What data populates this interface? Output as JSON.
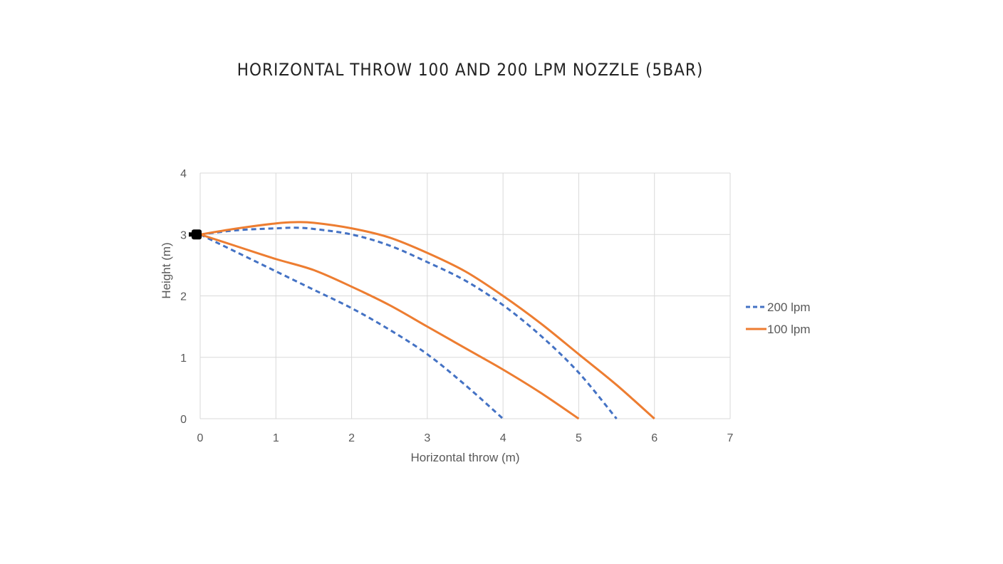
{
  "chart_data": {
    "type": "line",
    "title": "HORIZONTAL THROW 100 AND 200 LPM NOZZLE (5BAR)",
    "xlabel": "Horizontal throw (m)",
    "ylabel": "Height (m)",
    "xlim": [
      0,
      7
    ],
    "ylim": [
      0,
      4
    ],
    "xticks": [
      "0",
      "1",
      "2",
      "3",
      "4",
      "5",
      "6",
      "7"
    ],
    "yticks": [
      "0",
      "1",
      "2",
      "3",
      "4"
    ],
    "grid": true,
    "legend_position": "right",
    "series": [
      {
        "name": "200 lpm",
        "style": "dashed",
        "color": "#4472C4",
        "curves": [
          {
            "x": [
              0,
              0.5,
              1,
              1.25,
              1.5,
              2,
              2.5,
              3,
              3.5,
              4,
              4.5,
              5,
              5.5
            ],
            "y": [
              3,
              3.07,
              3.1,
              3.11,
              3.09,
              3.0,
              2.82,
              2.55,
              2.25,
              1.85,
              1.35,
              0.75,
              0
            ]
          },
          {
            "x": [
              0,
              0.5,
              1,
              1.5,
              2,
              2.5,
              3,
              3.5,
              4
            ],
            "y": [
              3,
              2.7,
              2.4,
              2.1,
              1.8,
              1.45,
              1.05,
              0.55,
              0
            ]
          }
        ]
      },
      {
        "name": "100 lpm",
        "style": "solid",
        "color": "#ED7D31",
        "curves": [
          {
            "x": [
              0,
              0.5,
              1,
              1.25,
              1.5,
              2,
              2.5,
              3,
              3.5,
              4,
              4.5,
              5,
              5.5,
              6
            ],
            "y": [
              3,
              3.1,
              3.18,
              3.2,
              3.19,
              3.1,
              2.95,
              2.7,
              2.4,
              2.0,
              1.55,
              1.05,
              0.55,
              0
            ]
          },
          {
            "x": [
              0,
              0.5,
              1,
              1.5,
              2,
              2.5,
              3,
              3.5,
              4,
              4.5,
              5
            ],
            "y": [
              3,
              2.8,
              2.6,
              2.42,
              2.15,
              1.85,
              1.5,
              1.15,
              0.8,
              0.42,
              0
            ]
          }
        ]
      }
    ],
    "annotations": [
      {
        "type": "nozzle-marker",
        "x": 0,
        "y": 3,
        "color": "#000000"
      }
    ]
  }
}
